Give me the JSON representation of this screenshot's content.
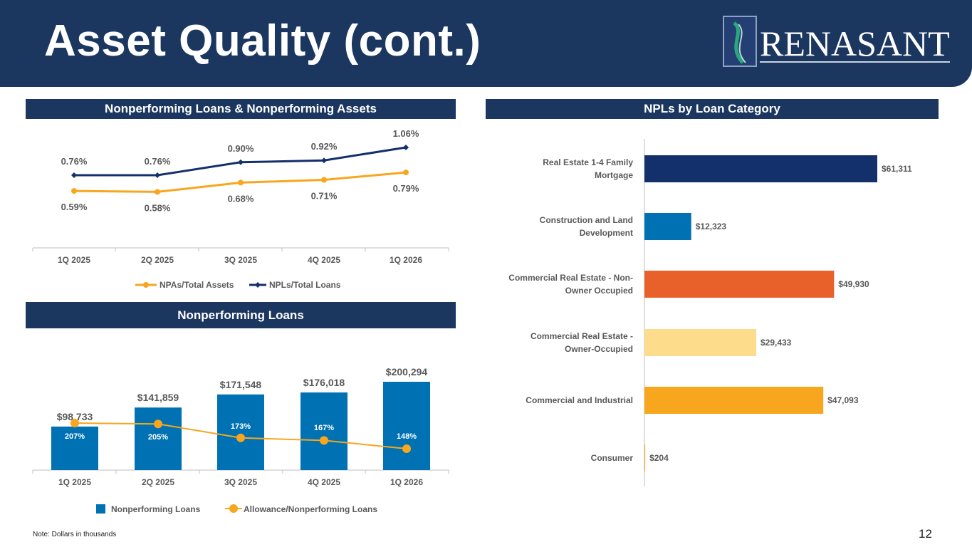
{
  "header": {
    "title": "Asset Quality (cont.)",
    "logo_text": "RENASANT"
  },
  "sections": {
    "npl_npa": "Nonperforming Loans & Nonperforming Assets",
    "npl": "Nonperforming Loans",
    "category": "NPLs by Loan Category"
  },
  "footer": {
    "note": "Note: Dollars in thousands",
    "page": "12"
  },
  "colors": {
    "navy": "#1b365f",
    "line_navy": "#13306b",
    "orange": "#f8a61e",
    "blue": "#0071b3"
  },
  "chart_data": [
    {
      "type": "line",
      "title": "Nonperforming Loans & Nonperforming Assets",
      "categories": [
        "1Q 2025",
        "2Q 2025",
        "3Q 2025",
        "4Q 2025",
        "1Q 2026"
      ],
      "series": [
        {
          "name": "NPAs/Total Assets",
          "values": [
            0.59,
            0.58,
            0.68,
            0.71,
            0.79
          ],
          "labels": [
            "0.59%",
            "0.58%",
            "0.68%",
            "0.71%",
            "0.79%"
          ],
          "color": "#f8a61e"
        },
        {
          "name": "NPLs/Total Loans",
          "values": [
            0.76,
            0.76,
            0.9,
            0.92,
            1.06
          ],
          "labels": [
            "0.76%",
            "0.76%",
            "0.90%",
            "0.92%",
            "1.06%"
          ],
          "color": "#13306b"
        }
      ],
      "legend": "bottom"
    },
    {
      "type": "bar",
      "title": "Nonperforming Loans",
      "categories": [
        "1Q 2025",
        "2Q 2025",
        "3Q 2025",
        "4Q 2025",
        "1Q 2026"
      ],
      "series": [
        {
          "name": "Nonperforming Loans",
          "values": [
            98733,
            141859,
            171548,
            176018,
            200294
          ],
          "labels": [
            "$98,733",
            "$141,859",
            "$171,548",
            "$176,018",
            "$200,294"
          ],
          "color": "#0071b3"
        },
        {
          "name": "Allowance/Nonperforming Loans",
          "type": "line",
          "values": [
            207,
            205,
            173,
            167,
            148
          ],
          "labels": [
            "207%",
            "205%",
            "173%",
            "167%",
            "148%"
          ],
          "color": "#f8a61e"
        }
      ],
      "legend": "bottom"
    },
    {
      "type": "bar",
      "orientation": "horizontal",
      "title": "NPLs by Loan Category",
      "categories": [
        [
          "Real Estate 1-4 Family",
          "Mortgage"
        ],
        [
          "Construction and Land",
          "Development"
        ],
        [
          "Commercial Real Estate - Non-",
          "Owner Occupied"
        ],
        [
          "Commercial Real Estate -",
          "Owner-Occupied"
        ],
        [
          "Commercial and Industrial"
        ],
        [
          "Consumer"
        ]
      ],
      "values": [
        61311,
        12323,
        49930,
        29433,
        47093,
        204
      ],
      "labels": [
        "$61,311",
        "$12,323",
        "$49,930",
        "$29,433",
        "$47,093",
        "$204"
      ],
      "colors": [
        "#13306b",
        "#0071b3",
        "#e8612a",
        "#fddc8c",
        "#f8a61e",
        "#f8a61e"
      ]
    }
  ]
}
